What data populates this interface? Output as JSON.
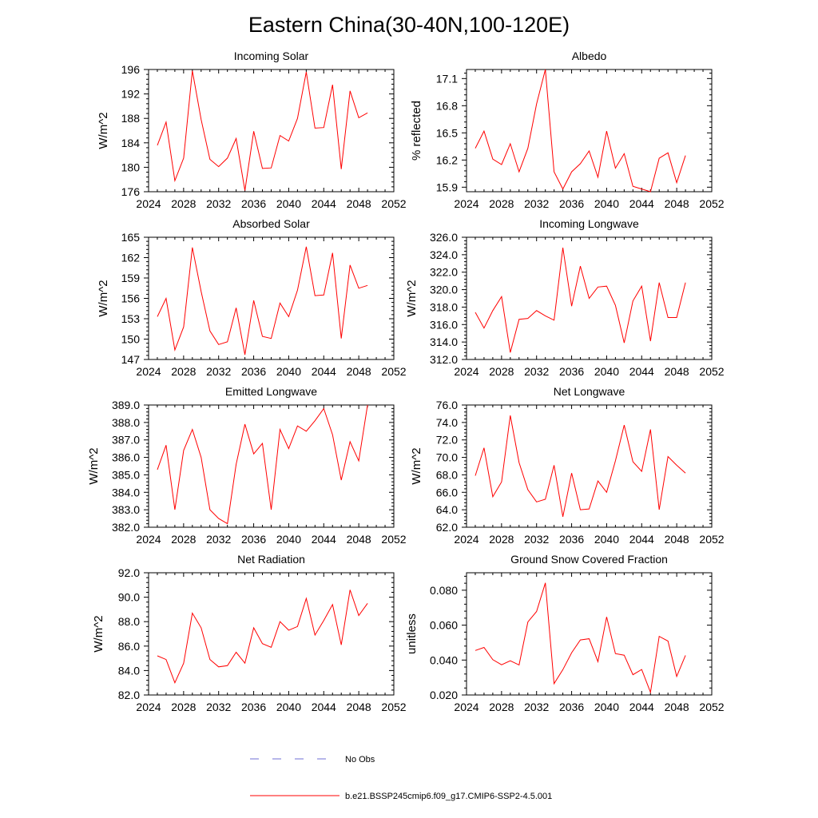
{
  "title": "Eastern China(30-40N,100-120E)",
  "legend": {
    "obs_label": "No Obs",
    "obs_color": "#6f6fd6",
    "model_label": "b.e21.BSSP245cmip6.f09_g17.CMIP6-SSP2-4.5.001",
    "model_color": "#ff0000"
  },
  "chart_data": [
    {
      "type": "line",
      "title": "Incoming Solar",
      "ylabel": "W/m^2",
      "xlim": [
        2024,
        2052
      ],
      "xticks": [
        2024,
        2028,
        2032,
        2036,
        2040,
        2044,
        2048,
        2052
      ],
      "ylim": [
        176,
        196
      ],
      "yticks": [
        176,
        180,
        184,
        188,
        192,
        196
      ],
      "ytick_decimals": 0,
      "x": [
        2025,
        2026,
        2027,
        2028,
        2029,
        2030,
        2031,
        2032,
        2033,
        2034,
        2035,
        2036,
        2037,
        2038,
        2039,
        2040,
        2041,
        2042,
        2043,
        2044,
        2045,
        2046,
        2047,
        2048,
        2049
      ],
      "series": [
        {
          "values": [
            183.6,
            187.4,
            177.8,
            181.5,
            195.8,
            187.8,
            181.3,
            180.1,
            181.5,
            184.7,
            176.2,
            185.9,
            179.8,
            179.9,
            185.2,
            184.3,
            188.0,
            195.6,
            186.4,
            186.5,
            193.5,
            179.7,
            192.5,
            188.1,
            188.9
          ]
        }
      ]
    },
    {
      "type": "line",
      "title": "Albedo",
      "ylabel": "% reflected",
      "xlim": [
        2024,
        2052
      ],
      "xticks": [
        2024,
        2028,
        2032,
        2036,
        2040,
        2044,
        2048,
        2052
      ],
      "ylim": [
        15.85,
        17.2
      ],
      "yticks": [
        15.9,
        16.2,
        16.5,
        16.8,
        17.1
      ],
      "ytick_decimals": 1,
      "x": [
        2025,
        2026,
        2027,
        2028,
        2029,
        2030,
        2031,
        2032,
        2033,
        2034,
        2035,
        2036,
        2037,
        2038,
        2039,
        2040,
        2041,
        2042,
        2043,
        2044,
        2045,
        2046,
        2047,
        2048,
        2049
      ],
      "series": [
        {
          "values": [
            16.33,
            16.52,
            16.21,
            16.15,
            16.38,
            16.07,
            16.33,
            16.82,
            17.2,
            16.07,
            15.88,
            16.07,
            16.16,
            16.3,
            16.01,
            16.52,
            16.11,
            16.27,
            15.91,
            15.88,
            15.85,
            16.22,
            16.28,
            15.95,
            16.25
          ]
        }
      ]
    },
    {
      "type": "line",
      "title": "Absorbed Solar",
      "ylabel": "W/m^2",
      "xlim": [
        2024,
        2052
      ],
      "xticks": [
        2024,
        2028,
        2032,
        2036,
        2040,
        2044,
        2048,
        2052
      ],
      "ylim": [
        147,
        165
      ],
      "yticks": [
        147,
        150,
        153,
        156,
        159,
        162,
        165
      ],
      "ytick_decimals": 0,
      "x": [
        2025,
        2026,
        2027,
        2028,
        2029,
        2030,
        2031,
        2032,
        2033,
        2034,
        2035,
        2036,
        2037,
        2038,
        2039,
        2040,
        2041,
        2042,
        2043,
        2044,
        2045,
        2046,
        2047,
        2048,
        2049
      ],
      "series": [
        {
          "values": [
            153.3,
            156.0,
            148.4,
            151.8,
            163.5,
            157.0,
            151.2,
            149.2,
            149.6,
            154.6,
            147.7,
            155.7,
            150.4,
            150.1,
            155.3,
            153.3,
            157.2,
            163.6,
            156.4,
            156.5,
            162.7,
            150.1,
            160.9,
            157.5,
            157.9
          ]
        }
      ]
    },
    {
      "type": "line",
      "title": "Incoming Longwave",
      "ylabel": "W/m^2",
      "xlim": [
        2024,
        2052
      ],
      "xticks": [
        2024,
        2028,
        2032,
        2036,
        2040,
        2044,
        2048,
        2052
      ],
      "ylim": [
        312,
        326
      ],
      "yticks": [
        312.0,
        314.0,
        316.0,
        318.0,
        320.0,
        322.0,
        324.0,
        326.0
      ],
      "ytick_decimals": 1,
      "x": [
        2025,
        2026,
        2027,
        2028,
        2029,
        2030,
        2031,
        2032,
        2033,
        2034,
        2035,
        2036,
        2037,
        2038,
        2039,
        2040,
        2041,
        2042,
        2043,
        2044,
        2045,
        2046,
        2047,
        2048,
        2049
      ],
      "series": [
        {
          "values": [
            317.4,
            315.6,
            317.6,
            319.2,
            312.8,
            316.6,
            316.7,
            317.6,
            317.0,
            316.5,
            324.8,
            318.1,
            322.7,
            319.0,
            320.3,
            320.4,
            318.2,
            313.9,
            318.7,
            320.4,
            314.1,
            320.8,
            316.8,
            316.8,
            320.8
          ]
        }
      ]
    },
    {
      "type": "line",
      "title": "Emitted Longwave",
      "ylabel": "W/m^2",
      "xlim": [
        2024,
        2052
      ],
      "xticks": [
        2024,
        2028,
        2032,
        2036,
        2040,
        2044,
        2048,
        2052
      ],
      "ylim": [
        382,
        389
      ],
      "yticks": [
        382.0,
        383.0,
        384.0,
        385.0,
        386.0,
        387.0,
        388.0,
        389.0
      ],
      "ytick_decimals": 1,
      "x": [
        2025,
        2026,
        2027,
        2028,
        2029,
        2030,
        2031,
        2032,
        2033,
        2034,
        2035,
        2036,
        2037,
        2038,
        2039,
        2040,
        2041,
        2042,
        2043,
        2044,
        2045,
        2046,
        2047,
        2048,
        2049
      ],
      "series": [
        {
          "values": [
            385.3,
            386.7,
            383.0,
            386.4,
            387.6,
            386.0,
            383.0,
            382.5,
            382.2,
            385.6,
            387.9,
            386.2,
            386.8,
            383.0,
            387.6,
            386.5,
            387.8,
            387.5,
            388.1,
            388.8,
            387.3,
            384.7,
            386.9,
            385.8,
            389.0
          ]
        }
      ]
    },
    {
      "type": "line",
      "title": "Net Longwave",
      "ylabel": "W/m^2",
      "xlim": [
        2024,
        2052
      ],
      "xticks": [
        2024,
        2028,
        2032,
        2036,
        2040,
        2044,
        2048,
        2052
      ],
      "ylim": [
        62,
        76
      ],
      "yticks": [
        62.0,
        64.0,
        66.0,
        68.0,
        70.0,
        72.0,
        74.0,
        76.0
      ],
      "ytick_decimals": 1,
      "x": [
        2025,
        2026,
        2027,
        2028,
        2029,
        2030,
        2031,
        2032,
        2033,
        2034,
        2035,
        2036,
        2037,
        2038,
        2039,
        2040,
        2041,
        2042,
        2043,
        2044,
        2045,
        2046,
        2047,
        2048,
        2049
      ],
      "series": [
        {
          "values": [
            67.9,
            71.1,
            65.5,
            67.2,
            74.8,
            69.4,
            66.3,
            64.9,
            65.2,
            69.1,
            63.2,
            68.2,
            64.0,
            64.1,
            67.3,
            66.0,
            69.6,
            73.7,
            69.5,
            68.4,
            73.2,
            64.0,
            70.1,
            69.1,
            68.2
          ]
        }
      ]
    },
    {
      "type": "line",
      "title": "Net Radiation",
      "ylabel": "W/m^2",
      "xlim": [
        2024,
        2052
      ],
      "xticks": [
        2024,
        2028,
        2032,
        2036,
        2040,
        2044,
        2048,
        2052
      ],
      "ylim": [
        82,
        92
      ],
      "yticks": [
        82.0,
        84.0,
        86.0,
        88.0,
        90.0,
        92.0
      ],
      "ytick_decimals": 1,
      "x": [
        2025,
        2026,
        2027,
        2028,
        2029,
        2030,
        2031,
        2032,
        2033,
        2034,
        2035,
        2036,
        2037,
        2038,
        2039,
        2040,
        2041,
        2042,
        2043,
        2044,
        2045,
        2046,
        2047,
        2048,
        2049
      ],
      "series": [
        {
          "values": [
            85.2,
            84.9,
            83.0,
            84.6,
            88.7,
            87.5,
            84.9,
            84.3,
            84.4,
            85.5,
            84.6,
            87.5,
            86.2,
            85.9,
            88.0,
            87.3,
            87.6,
            89.9,
            86.9,
            88.1,
            89.4,
            86.1,
            90.6,
            88.5,
            89.5
          ]
        }
      ]
    },
    {
      "type": "line",
      "title": "Ground Snow Covered Fraction",
      "ylabel": "unitless",
      "xlim": [
        2024,
        2052
      ],
      "xticks": [
        2024,
        2028,
        2032,
        2036,
        2040,
        2044,
        2048,
        2052
      ],
      "ylim": [
        0.02,
        0.09
      ],
      "yticks": [
        0.02,
        0.04,
        0.06,
        0.08
      ],
      "ytick_decimals": 3,
      "x": [
        2025,
        2026,
        2027,
        2028,
        2029,
        2030,
        2031,
        2032,
        2033,
        2034,
        2035,
        2036,
        2037,
        2038,
        2039,
        2040,
        2041,
        2042,
        2043,
        2044,
        2045,
        2046,
        2047,
        2048,
        2049
      ],
      "series": [
        {
          "values": [
            0.0455,
            0.0472,
            0.0402,
            0.0373,
            0.0396,
            0.0372,
            0.0618,
            0.0678,
            0.0842,
            0.0265,
            0.0345,
            0.0442,
            0.0515,
            0.0522,
            0.0391,
            0.0647,
            0.0437,
            0.0428,
            0.0316,
            0.0346,
            0.0215,
            0.0536,
            0.0509,
            0.0306,
            0.0427
          ]
        }
      ]
    }
  ]
}
